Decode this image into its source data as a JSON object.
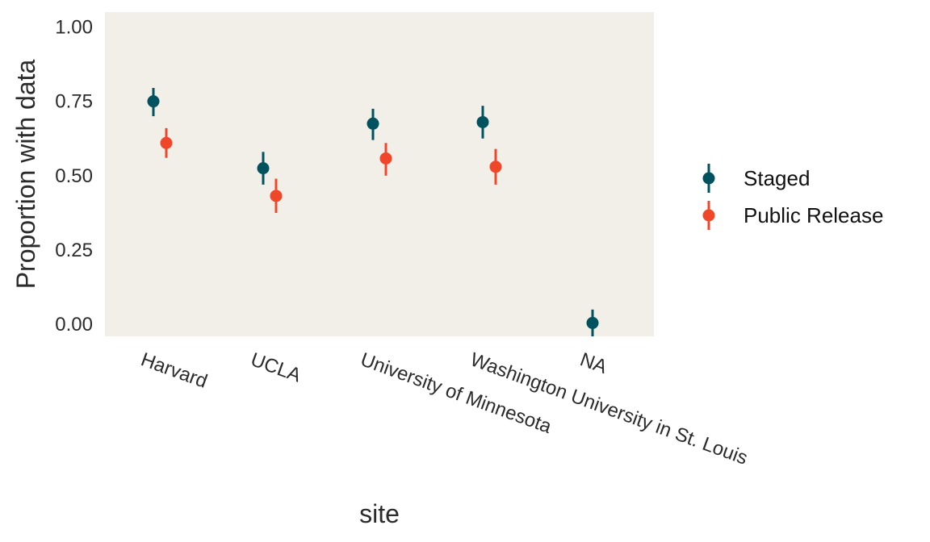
{
  "chart_data": {
    "type": "scatter",
    "title": "",
    "xlabel": "site",
    "ylabel": "Proportion with data",
    "ylim": [
      -0.04,
      1.05
    ],
    "yticks": [
      0.0,
      0.25,
      0.5,
      0.75,
      1.0
    ],
    "ytick_labels": [
      "0.00",
      "0.25",
      "0.50",
      "0.75",
      "1.00"
    ],
    "categories": [
      "Harvard",
      "UCLA",
      "University of Minnesota",
      "Washington University in St. Louis",
      "NA"
    ],
    "series": [
      {
        "name": "Staged",
        "color": "#00525e",
        "values": [
          0.75,
          0.525,
          0.675,
          0.68,
          0.005
        ],
        "lower": [
          0.7,
          0.47,
          0.62,
          0.625,
          -0.04
        ],
        "upper": [
          0.795,
          0.58,
          0.725,
          0.735,
          0.05
        ]
      },
      {
        "name": "Public Release",
        "color": "#f0462a",
        "values": [
          0.61,
          0.432,
          0.558,
          0.53,
          null
        ],
        "lower": [
          0.56,
          0.375,
          0.5,
          0.47,
          null
        ],
        "upper": [
          0.66,
          0.49,
          0.61,
          0.59,
          null
        ]
      }
    ],
    "legend_position": "right",
    "grid": false,
    "panel_background": "#f2efe9"
  }
}
